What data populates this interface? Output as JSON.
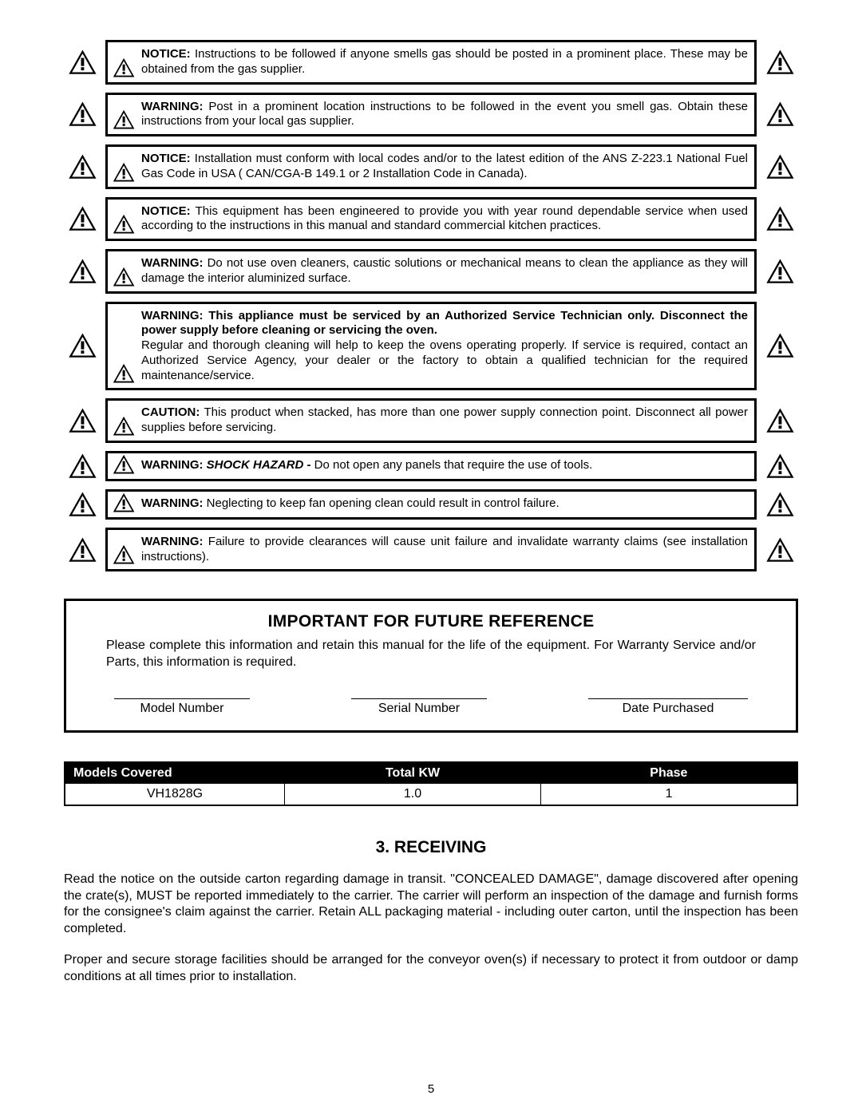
{
  "warnings": [
    {
      "lead": "NOTICE:",
      "text": " Instructions to be followed if anyone smells gas should be posted in a prominent place. These may be obtained from the gas supplier."
    },
    {
      "lead": "WARNING:",
      "text": " Post in a prominent location instructions to be followed in the event you smell gas. Obtain these instructions from your local gas supplier."
    },
    {
      "lead": "NOTICE:",
      "text": " Installation must conform with local codes and/or to the latest edition of the ANS Z-223.1 National Fuel Gas Code in USA ( CAN/CGA-B 149.1 or 2 Installation Code in Canada)."
    },
    {
      "lead": "NOTICE:",
      "text": " This equipment has been engineered to provide you with year round dependable service when used according to the instructions in this manual and standard commercial kitchen practices."
    },
    {
      "lead": "WARNING:",
      "text": " Do not use oven cleaners, caustic solutions or mechanical means to clean the appliance as they will damage the interior aluminized surface."
    },
    {
      "lead": "WARNING:",
      "bold_block": " This appliance must be serviced by an Authorized Service Technician only. Disconnect the power supply before cleaning or servicing the oven",
      "bold_tail": ".",
      "text": "Regular and thorough cleaning will help to keep the ovens operating properly. If service is required, contact an Authorized Service Agency, your dealer or the factory to obtain a qualified technician for the required maintenance/service."
    },
    {
      "lead": "CAUTION:",
      "text": " This product when stacked, has more than one power supply connection point. Disconnect all power supplies before servicing."
    },
    {
      "lead": "WARNING:",
      "emph": " SHOCK HAZARD -",
      "text": "  Do not open any panels that require the use of tools."
    },
    {
      "lead": "WARNING:",
      "text": " Neglecting to keep fan opening clean could result in control failure."
    },
    {
      "lead": "WARNING:",
      "text": " Failure to provide clearances will cause unit failure and invalidate warranty claims (see installation instructions)."
    }
  ],
  "reference": {
    "title": "IMPORTANT FOR FUTURE REFERENCE",
    "desc": "Please complete this information and retain this manual for the life of the equipment. For Warranty Service and/or Parts, this information is required.",
    "fields": [
      "Model Number",
      "Serial Number",
      "Date Purchased"
    ]
  },
  "models_table": {
    "headers": [
      "Models Covered",
      "Total KW",
      "Phase"
    ],
    "row": [
      "VH1828G",
      "1.0",
      "1"
    ]
  },
  "receiving": {
    "heading": "3.  RECEIVING",
    "p1": "Read the notice on the outside carton regarding damage in transit.  \"CONCEALED DAMAGE\", damage discovered after opening the crate(s), MUST be reported immediately to the carrier. The carrier will perform an inspection of the damage and furnish forms for the consignee's claim against the carrier.  Retain ALL packaging material - including outer carton, until the inspection has been completed.",
    "p2": "Proper and secure storage facilities should be arranged for the conveyor oven(s) if necessary to protect it from outdoor or damp conditions at all times prior to installation."
  },
  "page_number": "5",
  "colors": {
    "black": "#000000",
    "white": "#ffffff"
  }
}
